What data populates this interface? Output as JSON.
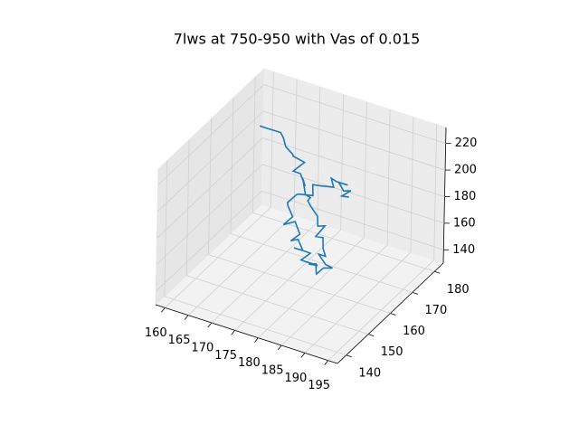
{
  "chart_data": {
    "type": "line3d",
    "title": "7lws at 750-950 with Vas of 0.015",
    "series": [
      {
        "color": "#1f77b4",
        "x": [
          161,
          163,
          165,
          167,
          168,
          170,
          171,
          173,
          172,
          174,
          176,
          175,
          177,
          179,
          178,
          180,
          182,
          183,
          185,
          184,
          186,
          187,
          188,
          187,
          189,
          190,
          189,
          188,
          187,
          186,
          184,
          185,
          183,
          181,
          182,
          180,
          178,
          179,
          177,
          175,
          176,
          174,
          172,
          173,
          171,
          170,
          171,
          172,
          174,
          173,
          175,
          177,
          176,
          178,
          180,
          179,
          181,
          183,
          182,
          184
        ],
        "y": [
          176,
          175,
          177,
          174,
          173,
          172,
          170,
          171,
          168,
          167,
          165,
          166,
          163,
          161,
          162,
          159,
          158,
          156,
          155,
          153,
          152,
          150,
          149,
          148,
          147,
          148,
          146,
          145,
          147,
          149,
          150,
          152,
          151,
          153,
          155,
          157,
          156,
          158,
          160,
          161,
          163,
          165,
          164,
          166,
          168,
          170,
          172,
          171,
          173,
          175,
          174,
          176,
          177,
          175,
          176,
          174,
          172,
          171,
          169,
          168
        ],
        "z": [
          205,
          207,
          203,
          206,
          202,
          200,
          203,
          199,
          196,
          198,
          194,
          197,
          192,
          195,
          190,
          193,
          189,
          186,
          190,
          184,
          187,
          183,
          180,
          182,
          178,
          175,
          177,
          173,
          170,
          172,
          168,
          165,
          167,
          163,
          166,
          162,
          164,
          160,
          163,
          158,
          161,
          165,
          162,
          166,
          169,
          167,
          171,
          174,
          172,
          176,
          179,
          177,
          181,
          184,
          182,
          186,
          185,
          189,
          187,
          190
        ]
      }
    ],
    "xlim": [
      158,
      197
    ],
    "ylim": [
      136,
      184
    ],
    "zlim": [
      130,
      232
    ],
    "xticks": [
      160,
      165,
      170,
      175,
      180,
      185,
      190,
      195
    ],
    "yticks": [
      140,
      150,
      160,
      170,
      180
    ],
    "zticks": [
      140,
      160,
      180,
      200,
      220
    ],
    "grid": true
  }
}
